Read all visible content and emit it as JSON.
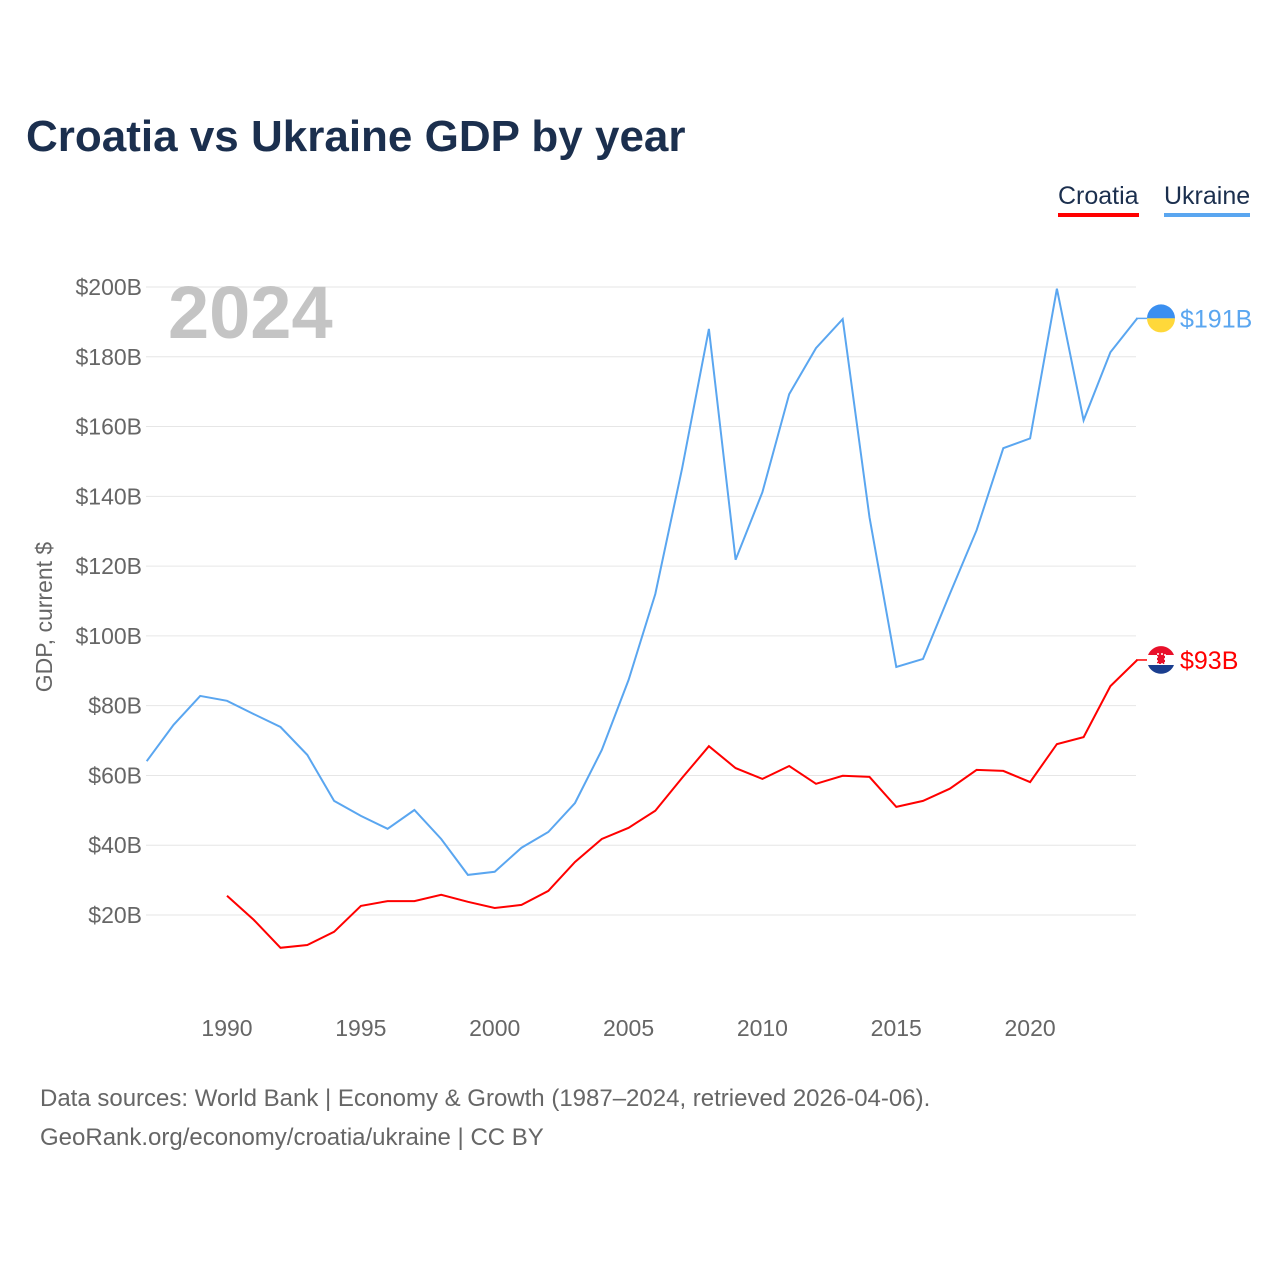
{
  "title": "Croatia vs Ukraine GDP by year",
  "legend": [
    {
      "label": "Croatia",
      "color": "#ff0000"
    },
    {
      "label": "Ukraine",
      "color": "#5aa6f0"
    }
  ],
  "year_watermark": "2024",
  "end_labels": {
    "croatia": "$93B",
    "ukraine": "$191B"
  },
  "footer": {
    "line1": "Data sources: World Bank | Economy & Growth (1987–2024, retrieved 2026-04-06).",
    "line2": "GeoRank.org/economy/croatia/ukraine | CC BY"
  },
  "chart_data": {
    "type": "line",
    "title": "Croatia vs Ukraine GDP by year",
    "xlabel": "",
    "ylabel": "GDP, current $",
    "xlim": [
      1987,
      2024
    ],
    "ylim": [
      0,
      200
    ],
    "x_ticks": [
      1990,
      1995,
      2000,
      2005,
      2010,
      2015,
      2020
    ],
    "y_ticks": [
      20,
      40,
      60,
      80,
      100,
      120,
      140,
      160,
      180,
      200
    ],
    "y_tick_labels": [
      "$20B",
      "$40B",
      "$60B",
      "$80B",
      "$100B",
      "$120B",
      "$140B",
      "$160B",
      "$180B",
      "$200B"
    ],
    "grid": true,
    "legend_position": "top-right",
    "series": [
      {
        "name": "Croatia",
        "color": "#ff0000",
        "start_year": 1990,
        "values": [
          25.5,
          18.6,
          10.6,
          11.4,
          15.2,
          22.6,
          24.0,
          24.0,
          25.8,
          23.8,
          22.0,
          22.9,
          26.9,
          35.2,
          41.8,
          45.0,
          49.9,
          59.3,
          68.4,
          62.1,
          59.0,
          62.7,
          57.6,
          59.9,
          59.6,
          51.0,
          52.7,
          56.2,
          61.6,
          61.3,
          58.1,
          69.0,
          71.0,
          85.6,
          93.1
        ]
      },
      {
        "name": "Ukraine",
        "color": "#5aa6f0",
        "start_year": 1987,
        "values": [
          64.1,
          74.5,
          82.8,
          81.4,
          77.6,
          73.9,
          65.9,
          52.7,
          48.4,
          44.7,
          50.1,
          41.8,
          31.5,
          32.4,
          39.3,
          43.8,
          52.1,
          67.3,
          87.4,
          112.0,
          148.0,
          188.0,
          121.8,
          141.2,
          169.3,
          182.5,
          190.8,
          134.0,
          91.1,
          93.4,
          112.0,
          130.3,
          153.8,
          156.6,
          199.5,
          161.8,
          181.3,
          191.0
        ]
      }
    ]
  }
}
